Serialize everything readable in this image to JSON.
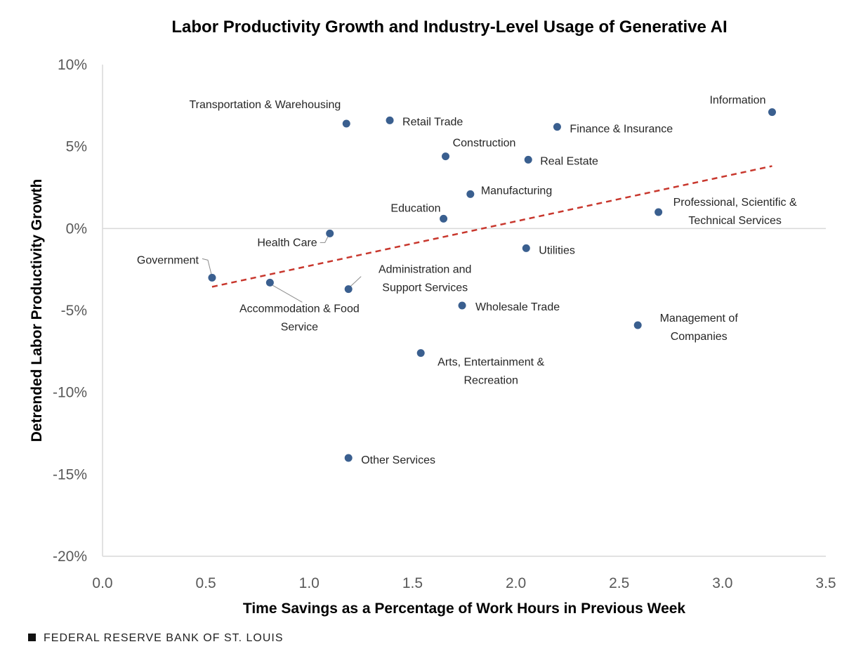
{
  "chart_data": {
    "type": "scatter",
    "title": "Labor Productivity Growth and Industry-Level Usage of Generative AI",
    "xlabel": "Time Savings as a Percentage of Work Hours in Previous Week",
    "ylabel": "Detrended Labor Productivity  Growth",
    "xlim": [
      0,
      3.5
    ],
    "ylim": [
      -20,
      10
    ],
    "x_ticks": [
      "0.0",
      "0.5",
      "1.0",
      "1.5",
      "2.0",
      "2.5",
      "3.0",
      "3.5"
    ],
    "x_tick_values": [
      0,
      0.5,
      1,
      1.5,
      2,
      2.5,
      3,
      3.5
    ],
    "y_ticks": [
      "10%",
      "5%",
      "0%",
      "-5%",
      "-10%",
      "-15%",
      "-20%"
    ],
    "y_tick_values": [
      10,
      5,
      0,
      -5,
      -10,
      -15,
      -20
    ],
    "grid": false,
    "point_color": "#3a5f8f",
    "trend_color": "#c8372d",
    "trendline": {
      "x": [
        0.53,
        3.24
      ],
      "y": [
        -3.56,
        3.81
      ],
      "style": "dashed"
    },
    "points": [
      {
        "label_lines": [
          "Transportation & Warehousing"
        ],
        "x": 1.18,
        "y": 6.4
      },
      {
        "label_lines": [
          "Retail Trade"
        ],
        "x": 1.39,
        "y": 6.6
      },
      {
        "label_lines": [
          "Construction"
        ],
        "x": 1.66,
        "y": 4.4
      },
      {
        "label_lines": [
          "Finance & Insurance"
        ],
        "x": 2.2,
        "y": 6.2
      },
      {
        "label_lines": [
          "Real Estate"
        ],
        "x": 2.06,
        "y": 4.2
      },
      {
        "label_lines": [
          "Information"
        ],
        "x": 3.24,
        "y": 7.1
      },
      {
        "label_lines": [
          "Manufacturing"
        ],
        "x": 1.78,
        "y": 2.1
      },
      {
        "label_lines": [
          "Education"
        ],
        "x": 1.65,
        "y": 0.6
      },
      {
        "label_lines": [
          "Professional, Scientific &",
          "Technical Services"
        ],
        "x": 2.69,
        "y": 1.0
      },
      {
        "label_lines": [
          "Health Care"
        ],
        "x": 1.1,
        "y": -0.3
      },
      {
        "label_lines": [
          "Utilities"
        ],
        "x": 2.05,
        "y": -1.2
      },
      {
        "label_lines": [
          "Government"
        ],
        "x": 0.53,
        "y": -3.0
      },
      {
        "label_lines": [
          "Accommodation  & Food",
          "Service"
        ],
        "x": 0.81,
        "y": -3.3
      },
      {
        "label_lines": [
          "Administration and",
          "Support  Services"
        ],
        "x": 1.19,
        "y": -3.7
      },
      {
        "label_lines": [
          "Wholesale Trade"
        ],
        "x": 1.74,
        "y": -4.7
      },
      {
        "label_lines": [
          "Management of",
          "Companies"
        ],
        "x": 2.59,
        "y": -5.9
      },
      {
        "label_lines": [
          "Arts, Entertainment &",
          "Recreation"
        ],
        "x": 1.54,
        "y": -7.6
      },
      {
        "label_lines": [
          "Other Services"
        ],
        "x": 1.19,
        "y": -14.0
      }
    ]
  },
  "footer": {
    "source": "FEDERAL RESERVE BANK OF ST. LOUIS"
  }
}
